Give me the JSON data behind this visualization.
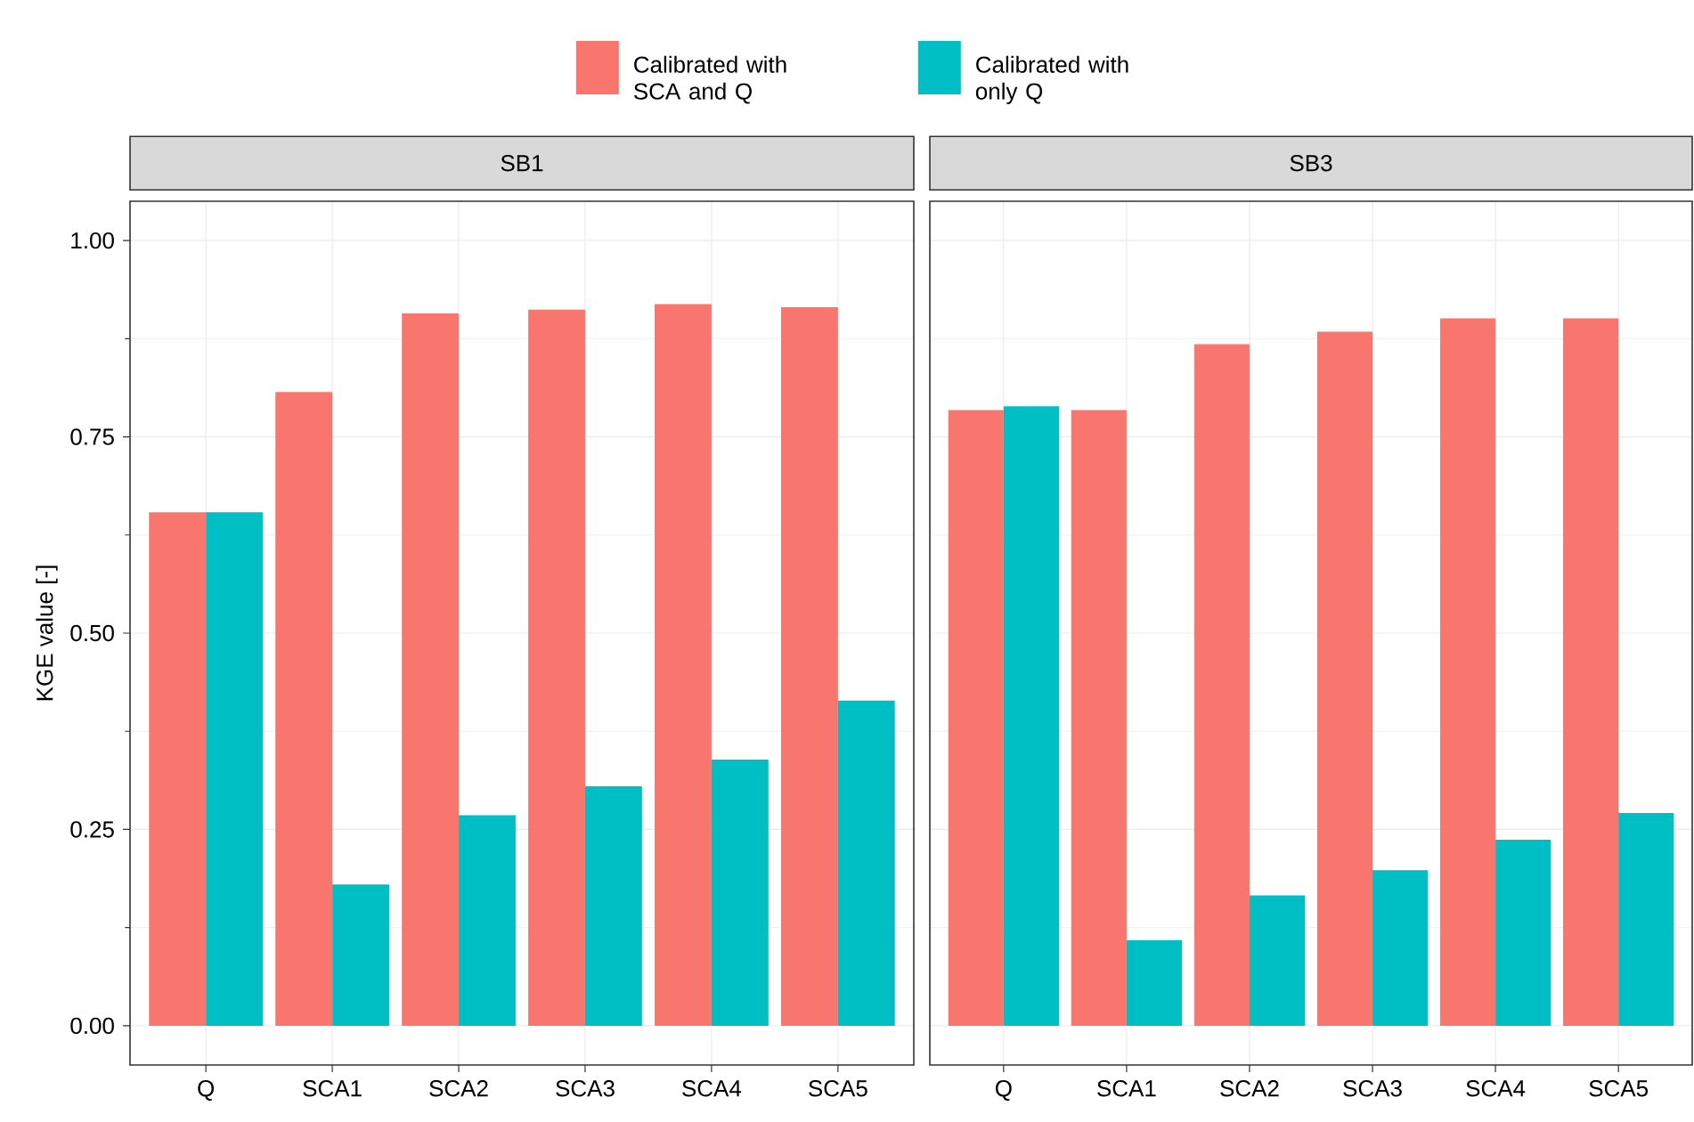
{
  "chart_data": [
    {
      "type": "bar",
      "title": "SB1",
      "ylabel": "KGE value [-]",
      "categories": [
        "Q",
        "SCA1",
        "SCA2",
        "SCA3",
        "SCA4",
        "SCA5"
      ],
      "ylim": [
        -0.05,
        1.05
      ],
      "yticks": [
        {
          "value": 0,
          "label": "0.00"
        },
        {
          "value": 0.25,
          "label": "0.25"
        },
        {
          "value": 0.5,
          "label": "0.50"
        },
        {
          "value": 0.75,
          "label": "0.75"
        },
        {
          "value": 1,
          "label": "1.00"
        }
      ],
      "grid": true,
      "legend": "top",
      "series": [
        {
          "name": "Calibrated with SCA and Q",
          "color": "#f8766d",
          "values": [
            0.654,
            0.807,
            0.907,
            0.912,
            0.919,
            0.915
          ]
        },
        {
          "name": "Calibrated with only Q",
          "color": "#00bfc4",
          "values": [
            0.654,
            0.18,
            0.268,
            0.305,
            0.339,
            0.414
          ]
        }
      ]
    },
    {
      "type": "bar",
      "title": "SB3",
      "categories": [
        "Q",
        "SCA1",
        "SCA2",
        "SCA3",
        "SCA4",
        "SCA5"
      ],
      "ylim": [
        -0.05,
        1.05
      ],
      "yticks": [
        {
          "value": 0,
          "label": null
        },
        {
          "value": 0.25,
          "label": null
        },
        {
          "value": 0.5,
          "label": null
        },
        {
          "value": 0.75,
          "label": null
        },
        {
          "value": 1,
          "label": null
        }
      ],
      "grid": true,
      "tick_labels": "x",
      "series": [
        {
          "color": "#f8766d",
          "values": [
            0.784,
            0.784,
            0.868,
            0.884,
            0.901,
            0.901
          ]
        },
        {
          "color": "#00bfc4",
          "values": [
            0.789,
            0.109,
            0.166,
            0.198,
            0.237,
            0.271
          ]
        }
      ]
    }
  ]
}
